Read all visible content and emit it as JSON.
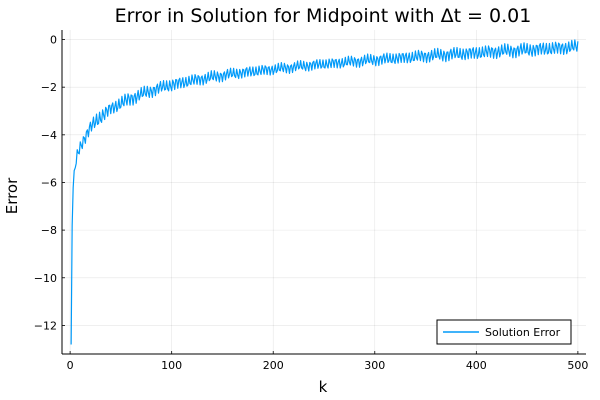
{
  "chart_data": {
    "type": "line",
    "title": "Error in Solution for Midpoint with Δt = 0.01",
    "xlabel": "k",
    "ylabel": "Error",
    "xlim": [
      -8,
      508
    ],
    "ylim": [
      -13.2,
      0.4
    ],
    "xticks": [
      0,
      100,
      200,
      300,
      400,
      500
    ],
    "xtick_labels": [
      "0",
      "100",
      "200",
      "300",
      "400",
      "500"
    ],
    "yticks": [
      0,
      -2,
      -4,
      -6,
      -8,
      -10,
      -12
    ],
    "ytick_labels": [
      "0",
      "−2",
      "−4",
      "−6",
      "−8",
      "−10",
      "−12"
    ],
    "grid": true,
    "legend": {
      "position": "bottom-right"
    },
    "series": [
      {
        "name": "Solution Error",
        "color": "#009af9",
        "x": [
          1,
          2,
          3,
          5,
          8,
          12,
          16,
          20,
          25,
          30,
          40,
          50,
          60,
          70,
          80,
          90,
          100,
          120,
          140,
          160,
          180,
          200,
          225,
          250,
          275,
          300,
          325,
          350,
          375,
          400,
          425,
          450,
          475,
          500
        ],
        "y_lower": [
          -12.8,
          -8.0,
          -6.4,
          -5.6,
          -5.0,
          -4.6,
          -4.3,
          -4.0,
          -3.8,
          -3.6,
          -3.2,
          -3.0,
          -2.8,
          -2.6,
          -2.45,
          -2.3,
          -2.2,
          -2.0,
          -1.85,
          -1.7,
          -1.6,
          -1.5,
          -1.38,
          -1.28,
          -1.2,
          -1.12,
          -1.05,
          -0.98,
          -0.92,
          -0.87,
          -0.8,
          -0.75,
          -0.7,
          -0.6
        ],
        "y_upper": [
          -12.8,
          -7.2,
          -6.0,
          -5.0,
          -4.4,
          -4.0,
          -3.7,
          -3.4,
          -3.1,
          -2.9,
          -2.6,
          -2.35,
          -2.15,
          -2.0,
          -1.85,
          -1.72,
          -1.6,
          -1.45,
          -1.3,
          -1.18,
          -1.08,
          -1.0,
          -0.88,
          -0.78,
          -0.68,
          -0.58,
          -0.5,
          -0.4,
          -0.32,
          -0.25,
          -0.18,
          -0.12,
          -0.06,
          0.0
        ]
      }
    ]
  }
}
